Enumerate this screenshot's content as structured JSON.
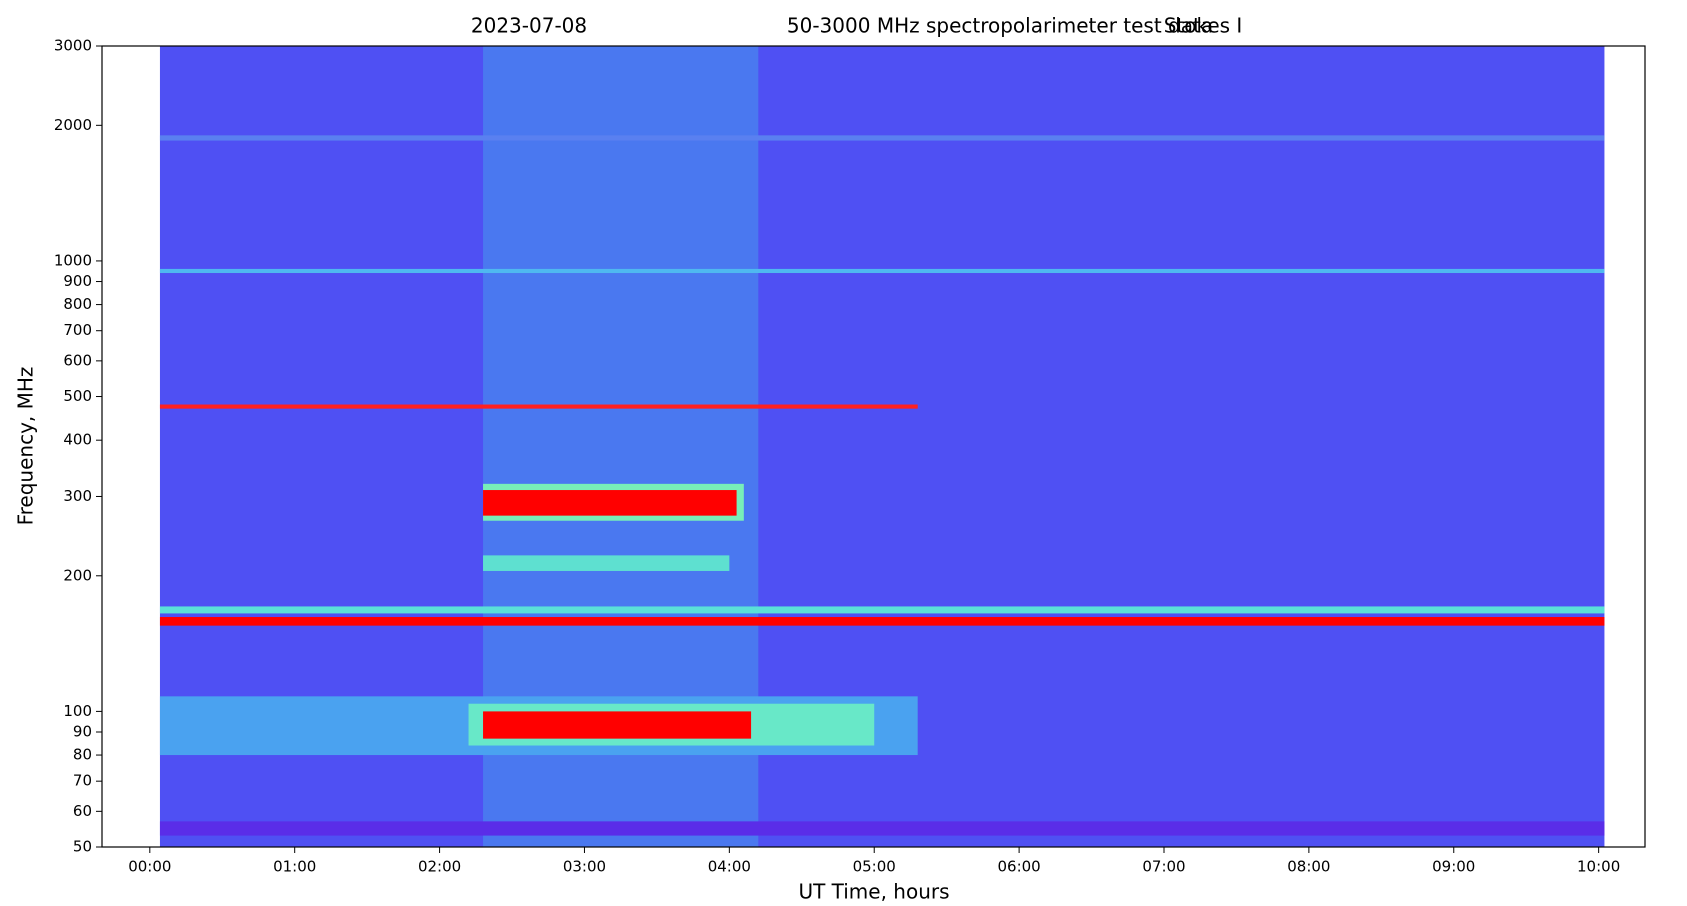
{
  "chart_data": {
    "type": "spectrogram",
    "title": [
      "2023-07-08",
      "50-3000 MHz spectropolarimeter test data",
      "Stokes I"
    ],
    "xlabel": "UT Time, hours",
    "ylabel": "Frequency, MHz",
    "xlim": [
      -0.33,
      10.32
    ],
    "xticks": [
      {
        "value": 0,
        "label": "00:00"
      },
      {
        "value": 1,
        "label": "01:00"
      },
      {
        "value": 2,
        "label": "02:00"
      },
      {
        "value": 3,
        "label": "03:00"
      },
      {
        "value": 4,
        "label": "04:00"
      },
      {
        "value": 5,
        "label": "05:00"
      },
      {
        "value": 6,
        "label": "06:00"
      },
      {
        "value": 7,
        "label": "07:00"
      },
      {
        "value": 8,
        "label": "08:00"
      },
      {
        "value": 9,
        "label": "09:00"
      },
      {
        "value": 10,
        "label": "10:00"
      }
    ],
    "ylim": [
      50,
      3000
    ],
    "yscale": "log",
    "yticks": [
      50,
      60,
      70,
      80,
      90,
      100,
      200,
      300,
      400,
      500,
      600,
      700,
      800,
      900,
      1000,
      2000,
      3000
    ],
    "regions": [
      {
        "x": [
          0.07,
          10.04
        ],
        "y": [
          50,
          3000
        ],
        "color": "#4f50f3"
      },
      {
        "x": [
          2.3,
          4.2
        ],
        "y": [
          50,
          3000
        ],
        "color": "#4a78f0"
      },
      {
        "x": [
          0.07,
          10.04
        ],
        "y": [
          53,
          57
        ],
        "color": "#5a2de8"
      },
      {
        "x": [
          0.07,
          10.04
        ],
        "y": [
          940,
          960
        ],
        "color": "#4fb8f0"
      },
      {
        "x": [
          0.07,
          10.04
        ],
        "y": [
          1850,
          1900
        ],
        "color": "#5a80f0"
      },
      {
        "x": [
          0.07,
          5.3
        ],
        "y": [
          80,
          108
        ],
        "color": "#4aa2f0"
      },
      {
        "x": [
          2.2,
          5.0
        ],
        "y": [
          84,
          104
        ],
        "color": "#68e8c8"
      },
      {
        "x": [
          2.3,
          4.15
        ],
        "y": [
          87,
          100
        ],
        "color": "#ff0000"
      },
      {
        "x": [
          2.3,
          4.1
        ],
        "y": [
          265,
          320
        ],
        "color": "#78eeb8"
      },
      {
        "x": [
          2.3,
          4.05
        ],
        "y": [
          272,
          310
        ],
        "color": "#ff0000"
      },
      {
        "x": [
          2.3,
          4.0
        ],
        "y": [
          205,
          222
        ],
        "color": "#5ee0d0"
      },
      {
        "x": [
          0.07,
          5.3
        ],
        "y": [
          470,
          480
        ],
        "color": "#ff2020"
      },
      {
        "x": [
          0.07,
          10.04
        ],
        "y": [
          165,
          171
        ],
        "color": "#5ae0d8"
      },
      {
        "x": [
          0.07,
          10.04
        ],
        "y": [
          155,
          162
        ],
        "color": "#ff0000"
      }
    ]
  }
}
